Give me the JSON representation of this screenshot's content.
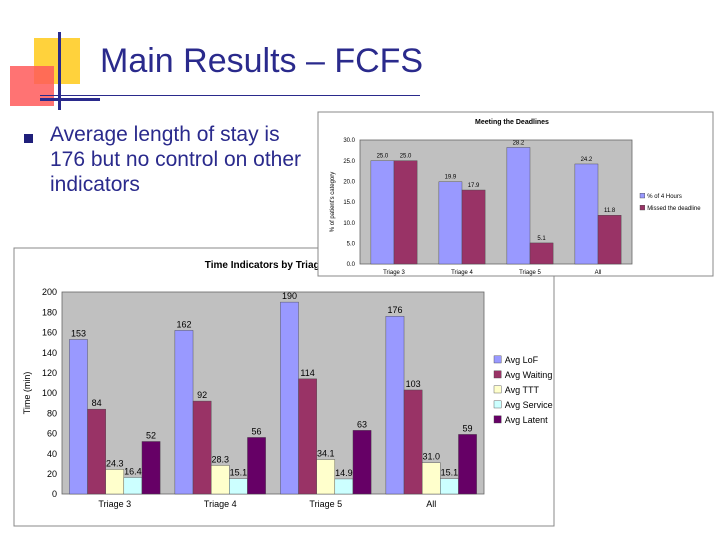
{
  "slide": {
    "title": "Main Results – FCFS",
    "bullet": "Average length of stay is 176 but no control on other indicators"
  },
  "colors": {
    "title": "#2a2a8c",
    "deco_yellow": "#ffd23c",
    "deco_red": "#ff3b3b",
    "deco_blue": "#2a2a8c",
    "plot_bg": "#c0c0c0",
    "lof": "#9999ff",
    "waiting": "#993366",
    "ttt": "#ffffcc",
    "service": "#ccffff",
    "latent": "#660066"
  },
  "chart_data": [
    {
      "type": "bar",
      "title": "Meeting the Deadlines",
      "xlabel": "",
      "ylabel": "% of patient's category",
      "categories": [
        "Triage 3",
        "Triage 4",
        "Triage 5",
        "All"
      ],
      "ylim": [
        0,
        30
      ],
      "yticks": [
        "0.0",
        "5.0",
        "10.0",
        "15.0",
        "20.0",
        "25.0",
        "30.0"
      ],
      "series": [
        {
          "name": "% of 4 Hours",
          "values": [
            25.0,
            19.9,
            28.2,
            24.2
          ],
          "labels": [
            "25.0",
            "19.9",
            "28.2",
            "24.2"
          ]
        },
        {
          "name": "Missed the deadline",
          "values": [
            25.0,
            17.9,
            5.1,
            11.8
          ],
          "labels": [
            "25.0",
            "17.9",
            "5.1",
            "11.8"
          ]
        }
      ],
      "grid": false,
      "legend": "right"
    },
    {
      "type": "bar",
      "title": "Time Indicators by Triage",
      "xlabel": "",
      "ylabel": "Time (min)",
      "categories": [
        "Triage 3",
        "Triage 4",
        "Triage 5",
        "All"
      ],
      "ylim": [
        0,
        200
      ],
      "yticks": [
        "0",
        "20",
        "40",
        "60",
        "80",
        "100",
        "120",
        "140",
        "160",
        "180",
        "200"
      ],
      "series": [
        {
          "name": "Avg LoF",
          "values": [
            153,
            162,
            190,
            176
          ],
          "labels": [
            "153",
            "162",
            "190",
            "176"
          ]
        },
        {
          "name": "Avg Waiting",
          "values": [
            84,
            92,
            114,
            103
          ],
          "labels": [
            "84",
            "92",
            "114",
            "103"
          ]
        },
        {
          "name": "Avg TTT",
          "values": [
            24.3,
            28.3,
            34.1,
            31.0
          ],
          "labels": [
            "24.3",
            "28.3",
            "34.1",
            "31.0"
          ]
        },
        {
          "name": "Avg Service",
          "values": [
            16.4,
            15.1,
            14.9,
            15.1
          ],
          "labels": [
            "16.4",
            "15.1",
            "14.9",
            "15.1"
          ]
        },
        {
          "name": "Avg Latent",
          "values": [
            52,
            56,
            63,
            59
          ],
          "labels": [
            "52",
            "56",
            "63",
            "59"
          ]
        }
      ],
      "grid": false,
      "legend": "right"
    }
  ]
}
